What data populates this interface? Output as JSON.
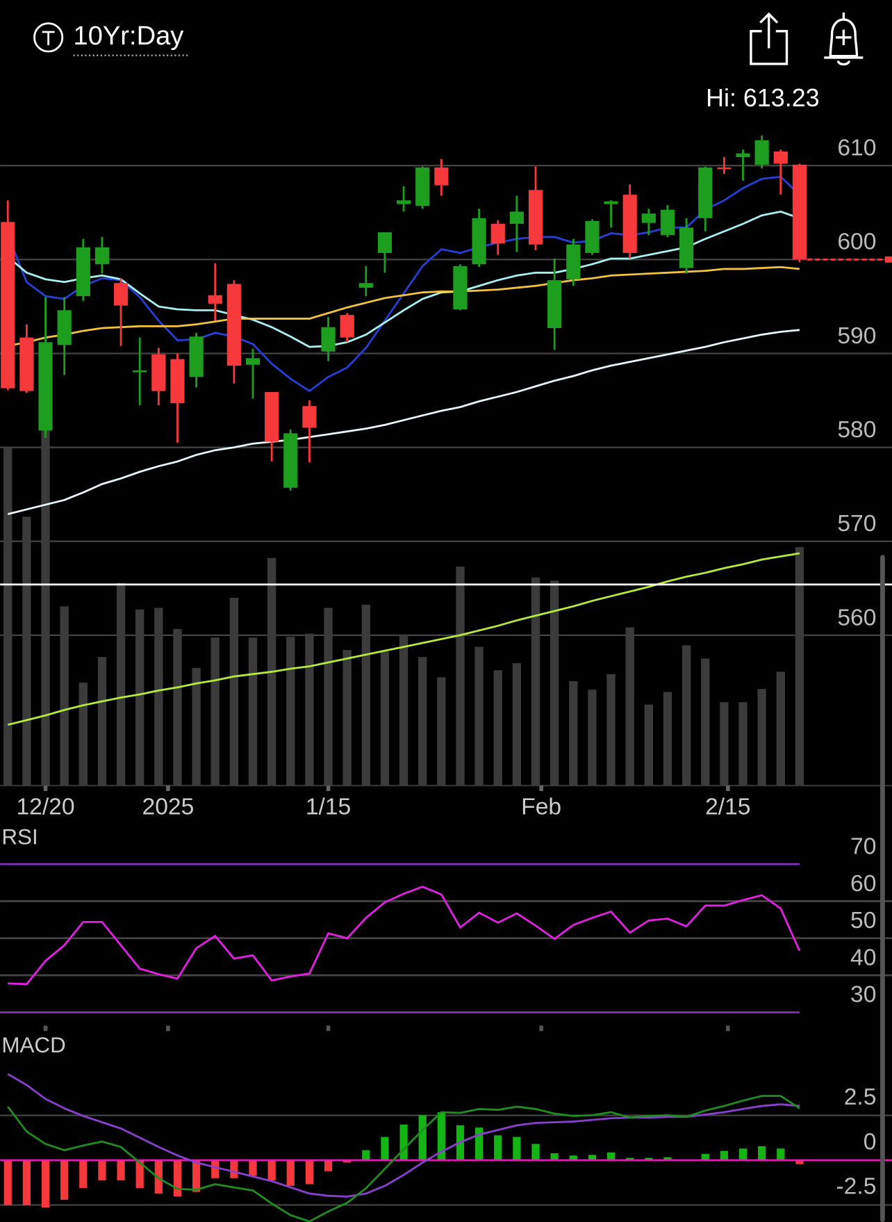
{
  "header": {
    "title": "10Yr:Day"
  },
  "chart_data": [
    {
      "type": "candlestick",
      "annotation": "Hi: 613.23",
      "xlim": [
        -0.41,
        46.9
      ],
      "xticks": [
        {
          "value": 2,
          "label": "12/20"
        },
        {
          "value": 8.5,
          "label": "2025"
        },
        {
          "value": 17,
          "label": "1/15"
        },
        {
          "value": 28.3,
          "label": "Feb"
        },
        {
          "value": 38.2,
          "label": "2/15"
        }
      ],
      "ylim": [
        544,
        619
      ],
      "yticks": [
        560,
        570,
        580,
        590,
        600,
        610
      ],
      "grid": true,
      "up_color": "#1e9e1e",
      "down_color": "#f7393c",
      "open": [
        604.0,
        591.7,
        581.8,
        590.9,
        596.1,
        599.5,
        597.5,
        588.0,
        589.9,
        589.4,
        587.5,
        596.2,
        597.4,
        588.8,
        585.9,
        575.7,
        584.4,
        590.2,
        594.1,
        597.0,
        600.7,
        605.9,
        605.7,
        609.8,
        594.7,
        599.5,
        603.8,
        603.8,
        607.4,
        592.7,
        597.9,
        600.7,
        605.9,
        606.9,
        603.9,
        602.6,
        599.1,
        604.4,
        609.8,
        610.9,
        610.1,
        611.5,
        610.1
      ],
      "high": [
        606.3,
        593.1,
        596.0,
        596.0,
        602.2,
        602.4,
        598.0,
        591.7,
        590.6,
        590.0,
        592.2,
        599.6,
        597.8,
        590.5,
        585.9,
        581.9,
        585.0,
        593.9,
        594.3,
        599.3,
        602.9,
        607.8,
        609.9,
        610.7,
        599.5,
        605.4,
        604.2,
        606.8,
        609.9,
        600.1,
        602.2,
        604.3,
        606.3,
        608.0,
        605.4,
        605.8,
        604.4,
        609.9,
        610.9,
        611.7,
        613.2,
        611.7,
        610.2
      ],
      "low": [
        586.1,
        585.8,
        581.0,
        587.7,
        595.6,
        598.5,
        590.8,
        584.5,
        584.5,
        580.5,
        586.4,
        593.5,
        586.8,
        585.2,
        578.5,
        575.4,
        578.4,
        589.2,
        591.2,
        596.1,
        598.6,
        605.1,
        605.4,
        606.8,
        594.6,
        599.2,
        600.5,
        600.8,
        601.0,
        590.4,
        597.2,
        600.5,
        603.4,
        600.1,
        602.6,
        602.4,
        598.5,
        603.0,
        609.1,
        608.4,
        609.7,
        606.9,
        599.7
      ],
      "close": [
        586.3,
        586.0,
        591.2,
        594.6,
        601.3,
        601.3,
        595.1,
        588.2,
        586.0,
        584.7,
        591.8,
        595.3,
        588.7,
        589.5,
        580.6,
        581.5,
        582.1,
        592.8,
        591.7,
        597.5,
        602.9,
        606.3,
        609.8,
        607.9,
        599.3,
        604.4,
        601.7,
        605.1,
        601.6,
        597.8,
        601.6,
        604.1,
        606.2,
        600.7,
        604.9,
        605.3,
        603.4,
        609.8,
        609.7,
        611.3,
        612.7,
        610.2,
        600.0
      ],
      "overlays": [
        {
          "color": "#2440d8",
          "values": [
            602.6,
            597.6,
            596.1,
            595.8,
            597.2,
            598.0,
            597.8,
            596.0,
            593.5,
            591.4,
            591.5,
            592.2,
            591.8,
            591.0,
            588.9,
            587.3,
            586.0,
            587.5,
            588.5,
            590.6,
            593.5,
            596.4,
            599.3,
            601.1,
            600.7,
            601.3,
            601.8,
            602.2,
            602.4,
            602.4,
            601.8,
            602.0,
            602.8,
            602.6,
            602.9,
            603.4,
            603.4,
            605.3,
            606.3,
            607.6,
            608.6,
            608.8,
            606.9
          ]
        },
        {
          "color": "#a6f2f2",
          "values": [
            600.3,
            598.6,
            597.9,
            597.6,
            598.0,
            598.3,
            597.9,
            596.4,
            595.0,
            594.7,
            594.6,
            594.6,
            594.1,
            593.6,
            592.8,
            591.8,
            590.7,
            590.8,
            591.2,
            592.0,
            593.3,
            594.6,
            595.8,
            596.5,
            596.6,
            597.2,
            597.8,
            598.3,
            598.6,
            598.6,
            599.0,
            599.5,
            600.1,
            600.1,
            600.5,
            600.9,
            601.3,
            602.2,
            603.0,
            603.8,
            604.7,
            605.1,
            604.4
          ]
        },
        {
          "color": "#f3c33c",
          "values": [
            590.8,
            591.2,
            591.7,
            592.0,
            592.4,
            592.7,
            592.8,
            592.9,
            592.9,
            592.9,
            593.1,
            593.4,
            593.7,
            593.7,
            593.7,
            593.7,
            593.7,
            594.3,
            594.9,
            595.4,
            595.9,
            596.2,
            596.5,
            596.6,
            596.6,
            596.7,
            596.8,
            597.0,
            597.2,
            597.5,
            597.8,
            598.0,
            598.3,
            598.4,
            598.5,
            598.6,
            598.7,
            598.8,
            599.0,
            599.0,
            599.1,
            599.2,
            599.0
          ]
        },
        {
          "color": "#e6f6fa",
          "values": [
            572.9,
            573.4,
            573.9,
            574.4,
            575.2,
            576.1,
            576.7,
            577.4,
            578.0,
            578.5,
            579.2,
            579.7,
            580.0,
            580.4,
            580.6,
            580.8,
            581.1,
            581.4,
            581.7,
            582.0,
            582.4,
            582.9,
            583.4,
            583.9,
            584.3,
            584.9,
            585.4,
            585.9,
            586.5,
            587.1,
            587.6,
            588.2,
            588.7,
            589.1,
            589.5,
            589.9,
            590.3,
            590.7,
            591.2,
            591.6,
            592.0,
            592.3,
            592.5
          ]
        }
      ],
      "volume": {
        "color": "#3b3b3b",
        "ylim": [
          0,
          904
        ],
        "values": [
          433,
          345,
          460,
          230,
          132,
          165,
          260,
          226,
          228,
          201,
          151,
          190,
          241,
          190,
          292,
          191,
          195,
          228,
          174,
          232,
          172,
          194,
          165,
          139,
          281,
          178,
          148,
          157,
          267,
          263,
          134,
          123,
          143,
          203,
          104,
          120,
          180,
          163,
          107,
          107,
          124,
          146,
          306
        ]
      },
      "volume_ma": {
        "color": "#b6ea3a",
        "values": [
          78,
          84,
          90,
          97,
          103,
          108,
          113,
          117,
          122,
          126,
          131,
          135,
          140,
          143,
          146,
          150,
          153,
          158,
          163,
          168,
          173,
          178,
          183,
          188,
          193,
          199,
          205,
          212,
          218,
          224,
          230,
          237,
          243,
          249,
          255,
          262,
          268,
          273,
          279,
          284,
          290,
          294,
          298
        ]
      }
    },
    {
      "type": "line",
      "title": "RSI",
      "ylim": [
        26,
        79
      ],
      "yticks": [
        30,
        40,
        50,
        60,
        70
      ],
      "grid": true,
      "level_color": "#8a2fc0",
      "color": "#e41ee4",
      "values": [
        37.8,
        37.6,
        43.9,
        48.1,
        54.4,
        54.4,
        48.1,
        41.8,
        40.3,
        39.1,
        47.3,
        50.6,
        44.5,
        45.4,
        38.6,
        39.7,
        40.5,
        51.3,
        50.0,
        55.5,
        59.7,
        62.0,
        63.9,
        61.8,
        52.9,
        56.9,
        54.2,
        56.7,
        53.4,
        49.8,
        53.6,
        55.5,
        57.2,
        51.5,
        54.8,
        55.3,
        53.2,
        58.8,
        58.8,
        60.3,
        61.6,
        58.0,
        46.6
      ]
    },
    {
      "type": "macd",
      "title": "MACD",
      "ylim": [
        -3.45,
        5.6
      ],
      "yticks": [
        -2.5,
        0,
        2.5
      ],
      "grid": true,
      "zero_color": "#e21cb4",
      "up_color": "#14b414",
      "down_color": "#f5383b",
      "histogram": [
        -2.51,
        -2.51,
        -2.64,
        -2.21,
        -1.56,
        -1.13,
        -1.13,
        -1.56,
        -1.86,
        -2.03,
        -1.77,
        -1.0,
        -1.0,
        -0.87,
        -1.13,
        -1.43,
        -1.34,
        -0.61,
        -0.13,
        0.56,
        1.3,
        1.99,
        2.51,
        2.68,
        1.95,
        1.82,
        1.39,
        1.3,
        0.91,
        0.39,
        0.26,
        0.3,
        0.43,
        0.13,
        0.13,
        0.17,
        0.04,
        0.35,
        0.52,
        0.65,
        0.78,
        0.65,
        -0.22
      ],
      "macd": {
        "color": "#1e8e1e",
        "values": [
          2.99,
          1.6,
          0.91,
          0.56,
          0.82,
          1.04,
          0.74,
          -0.13,
          -1.0,
          -1.6,
          -1.65,
          -1.34,
          -1.52,
          -1.69,
          -2.42,
          -3.07,
          -3.42,
          -2.86,
          -2.38,
          -1.56,
          -0.48,
          0.61,
          1.69,
          2.68,
          2.64,
          2.86,
          2.81,
          2.99,
          2.86,
          2.6,
          2.47,
          2.51,
          2.68,
          2.38,
          2.47,
          2.51,
          2.42,
          2.77,
          3.03,
          3.33,
          3.59,
          3.59,
          2.9
        ]
      },
      "signal": {
        "color": "#8b3fd0",
        "values": [
          4.81,
          4.2,
          3.42,
          2.9,
          2.47,
          2.12,
          1.77,
          1.26,
          0.74,
          0.26,
          -0.13,
          -0.39,
          -0.65,
          -0.91,
          -1.17,
          -1.52,
          -1.86,
          -1.99,
          -2.03,
          -1.86,
          -1.43,
          -0.82,
          -0.13,
          0.48,
          1.0,
          1.43,
          1.69,
          1.95,
          2.08,
          2.12,
          2.16,
          2.25,
          2.34,
          2.38,
          2.38,
          2.42,
          2.42,
          2.55,
          2.68,
          2.86,
          3.03,
          3.12,
          3.03
        ]
      }
    }
  ]
}
